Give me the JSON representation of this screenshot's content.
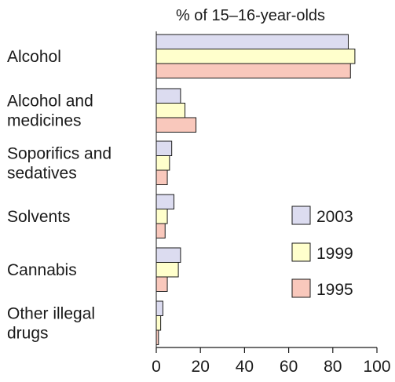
{
  "chart_data": {
    "type": "bar",
    "orientation": "horizontal",
    "title": "% of 15–16-year-olds",
    "categories": [
      [
        "Alcohol"
      ],
      [
        "Alcohol and",
        "medicines"
      ],
      [
        "Soporifics and",
        "sedatives"
      ],
      [
        "Solvents"
      ],
      [
        "Cannabis"
      ],
      [
        "Other illegal",
        "drugs"
      ]
    ],
    "series": [
      {
        "name": "2003",
        "color": "#dcdcf0",
        "values": [
          87,
          11,
          7,
          8,
          11,
          3
        ]
      },
      {
        "name": "1999",
        "color": "#ffffcc",
        "values": [
          90,
          13,
          6,
          5,
          10,
          2
        ]
      },
      {
        "name": "1995",
        "color": "#f9c8bc",
        "values": [
          88,
          18,
          5,
          4,
          5,
          1
        ]
      }
    ],
    "xlim": [
      0,
      100
    ],
    "xticks": [
      "0",
      "20",
      "40",
      "60",
      "80",
      "100"
    ],
    "legend_position": "right",
    "grid": false
  }
}
